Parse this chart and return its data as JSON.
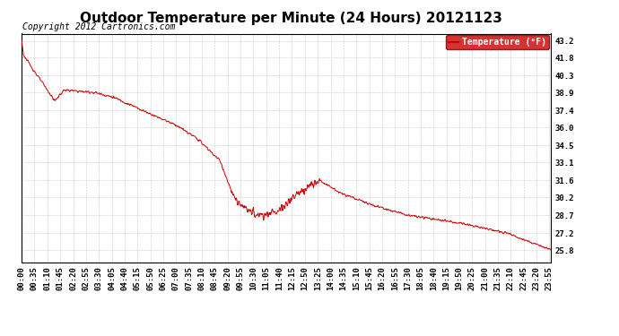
{
  "title": "Outdoor Temperature per Minute (24 Hours) 20121123",
  "copyright_text": "Copyright 2012 Cartronics.com",
  "legend_label": "Temperature (°F)",
  "legend_bg": "#cc0000",
  "legend_text_color": "#ffffff",
  "line_color": "#cc0000",
  "background_color": "#ffffff",
  "grid_color": "#bbbbbb",
  "yticks": [
    25.8,
    27.2,
    28.7,
    30.2,
    31.6,
    33.1,
    34.5,
    36.0,
    37.4,
    38.9,
    40.3,
    41.8,
    43.2
  ],
  "ylim": [
    24.8,
    43.8
  ],
  "xtick_labels": [
    "00:00",
    "00:35",
    "01:10",
    "01:45",
    "02:20",
    "02:55",
    "03:30",
    "04:05",
    "04:40",
    "05:15",
    "05:50",
    "06:25",
    "07:00",
    "07:35",
    "08:10",
    "08:45",
    "09:20",
    "09:55",
    "10:30",
    "11:05",
    "11:40",
    "12:15",
    "12:50",
    "13:25",
    "14:00",
    "14:35",
    "15:10",
    "15:45",
    "16:20",
    "16:55",
    "17:30",
    "18:05",
    "18:40",
    "19:15",
    "19:50",
    "20:25",
    "21:00",
    "21:35",
    "22:10",
    "22:45",
    "23:20",
    "23:55"
  ],
  "title_fontsize": 11,
  "axis_fontsize": 6.5,
  "copyright_fontsize": 7,
  "key_times": [
    0,
    5,
    90,
    115,
    200,
    250,
    330,
    420,
    480,
    540,
    560,
    580,
    600,
    630,
    660,
    690,
    710,
    740,
    760,
    810,
    870,
    960,
    1050,
    1200,
    1320,
    1380,
    1439
  ],
  "key_temps": [
    43.2,
    42.0,
    38.2,
    39.1,
    38.9,
    38.5,
    37.4,
    36.2,
    35.0,
    33.2,
    31.5,
    30.0,
    29.3,
    28.9,
    28.7,
    29.0,
    29.3,
    30.2,
    30.8,
    31.6,
    30.5,
    29.5,
    28.7,
    28.0,
    27.2,
    26.5,
    25.8
  ]
}
